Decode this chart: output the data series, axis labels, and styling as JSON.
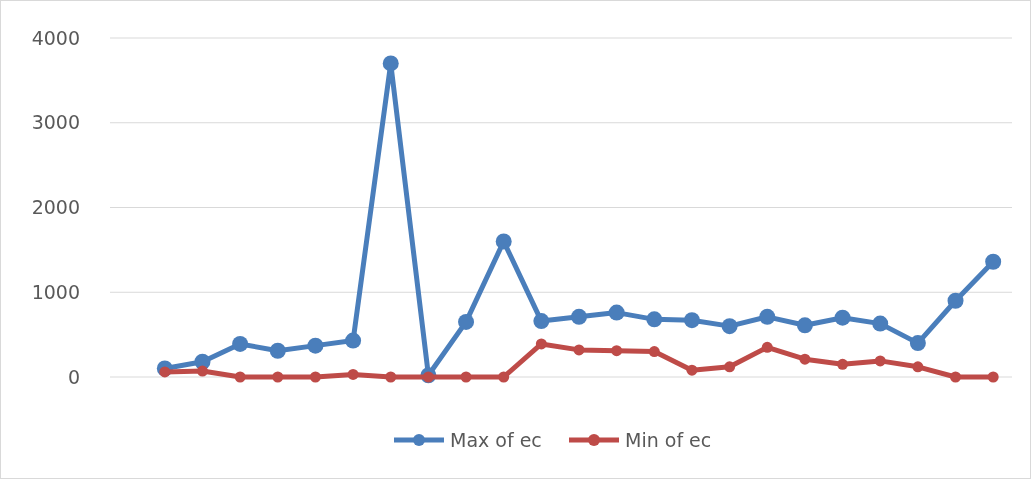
{
  "chart_data": {
    "type": "line",
    "categories": [
      null,
      null,
      null,
      null,
      null,
      null,
      null,
      null,
      null,
      null,
      null,
      null,
      null,
      null,
      null,
      null,
      null,
      null,
      null,
      null,
      null,
      null,
      null
    ],
    "series": [
      {
        "name": "Max of ec",
        "color": "#4a7ebb",
        "values": [
          100,
          180,
          390,
          310,
          370,
          430,
          3700,
          20,
          650,
          1600,
          660,
          710,
          760,
          680,
          670,
          600,
          710,
          610,
          700,
          630,
          400,
          900,
          1360
        ]
      },
      {
        "name": "Min of ec",
        "color": "#be4b48",
        "values": [
          60,
          70,
          0,
          0,
          0,
          30,
          0,
          0,
          0,
          0,
          390,
          320,
          310,
          300,
          80,
          120,
          350,
          210,
          150,
          190,
          120,
          0,
          0
        ]
      }
    ],
    "ylim": [
      0,
      4000
    ],
    "yticks": [
      0,
      1000,
      2000,
      3000,
      4000
    ],
    "grid": "y",
    "legend": "bottom",
    "marker": "circle",
    "line_style": "solid"
  }
}
